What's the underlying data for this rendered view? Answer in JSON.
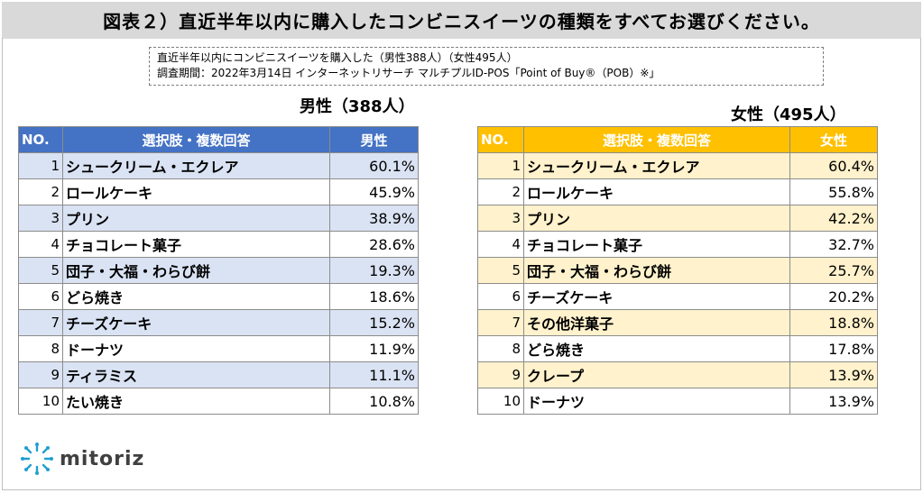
{
  "title": "図表２）直近半年以内に購入したコンビニスイーツの種類をすべてお選びください。",
  "note": {
    "line1": "直近半年以内にコンビニスイーツを購入した（男性388人）（女性495人）",
    "line2": "調査期間：2022年3月14日 インターネットリサーチ マルチプルID-POS「Point of Buy®（POB）※」"
  },
  "male": {
    "heading": "男性（388人）",
    "columns": [
      "NO.",
      "選択肢・複数回答",
      "男性"
    ],
    "rows": [
      {
        "no": "1",
        "item": "シュークリーム・エクレア",
        "pct": "60.1%"
      },
      {
        "no": "2",
        "item": "ロールケーキ",
        "pct": "45.9%"
      },
      {
        "no": "3",
        "item": "プリン",
        "pct": "38.9%"
      },
      {
        "no": "4",
        "item": "チョコレート菓子",
        "pct": "28.6%"
      },
      {
        "no": "5",
        "item": "団子・大福・わらび餅",
        "pct": "19.3%"
      },
      {
        "no": "6",
        "item": "どら焼き",
        "pct": "18.6%"
      },
      {
        "no": "7",
        "item": "チーズケーキ",
        "pct": "15.2%"
      },
      {
        "no": "8",
        "item": "ドーナツ",
        "pct": "11.9%"
      },
      {
        "no": "9",
        "item": "ティラミス",
        "pct": "11.1%"
      },
      {
        "no": "10",
        "item": "たい焼き",
        "pct": "10.8%"
      }
    ]
  },
  "female": {
    "heading": "女性（495人）",
    "columns": [
      "NO.",
      "選択肢・複数回答",
      "女性"
    ],
    "rows": [
      {
        "no": "1",
        "item": "シュークリーム・エクレア",
        "pct": "60.4%"
      },
      {
        "no": "2",
        "item": "ロールケーキ",
        "pct": "55.8%"
      },
      {
        "no": "3",
        "item": "プリン",
        "pct": "42.2%"
      },
      {
        "no": "4",
        "item": "チョコレート菓子",
        "pct": "32.7%"
      },
      {
        "no": "5",
        "item": "団子・大福・わらび餅",
        "pct": "25.7%"
      },
      {
        "no": "6",
        "item": "チーズケーキ",
        "pct": "20.2%"
      },
      {
        "no": "7",
        "item": "その他洋菓子",
        "pct": "18.8%"
      },
      {
        "no": "8",
        "item": "どら焼き",
        "pct": "17.8%"
      },
      {
        "no": "9",
        "item": "クレープ",
        "pct": "13.9%"
      },
      {
        "no": "10",
        "item": "ドーナツ",
        "pct": "13.9%"
      }
    ]
  },
  "logo": {
    "text": "mitoriz",
    "icon": "mitoriz-logo-icon"
  },
  "colors": {
    "male_header": "#4472c4",
    "male_band": "#dae3f3",
    "female_header": "#ffc000",
    "female_band": "#fff2cc",
    "banner": "#d9d9d9"
  }
}
